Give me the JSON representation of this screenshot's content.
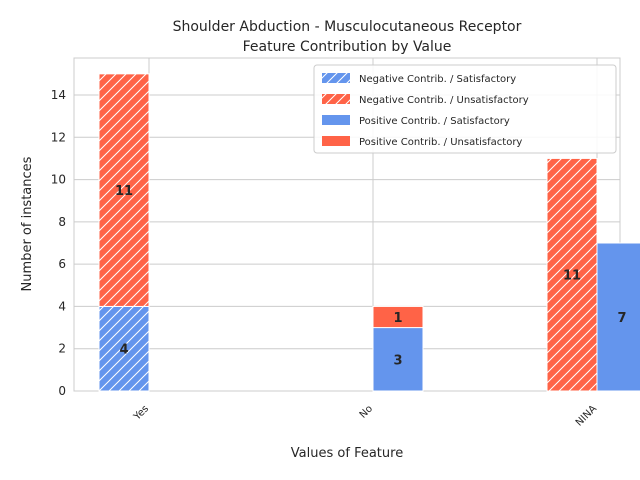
{
  "chart_data": {
    "type": "bar",
    "title": "Shoulder Abduction - Musculocutaneous Receptor",
    "subtitle": "Feature Contribution by Value",
    "xlabel": "Values of Feature",
    "ylabel": "Number of instances",
    "categories": [
      "Yes",
      "No",
      "NINA"
    ],
    "ylim": [
      0,
      15.75
    ],
    "yticks": [
      0,
      2,
      4,
      6,
      8,
      10,
      12,
      14
    ],
    "grid": true,
    "legend_position": "top-right",
    "colors": {
      "satisfactory": "#6495ED",
      "unsatisfactory": "#FF6347"
    },
    "groups": [
      {
        "name": "Negative Contrib.",
        "hatched": true,
        "series": [
          {
            "name": "Negative Contrib. / Satisfactory",
            "outcome": "satisfactory",
            "values": [
              4,
              0,
              0
            ]
          },
          {
            "name": "Negative Contrib. / Unsatisfactory",
            "outcome": "unsatisfactory",
            "values": [
              11,
              0,
              11
            ]
          }
        ]
      },
      {
        "name": "Positive Contrib.",
        "hatched": false,
        "series": [
          {
            "name": "Positive Contrib. / Satisfactory",
            "outcome": "satisfactory",
            "values": [
              0,
              3,
              7
            ]
          },
          {
            "name": "Positive Contrib. / Unsatisfactory",
            "outcome": "unsatisfactory",
            "values": [
              0,
              1,
              0
            ]
          }
        ]
      }
    ],
    "legend": [
      "Negative Contrib. / Satisfactory",
      "Negative Contrib. / Unsatisfactory",
      "Positive Contrib. / Satisfactory",
      "Positive Contrib. / Unsatisfactory"
    ]
  }
}
